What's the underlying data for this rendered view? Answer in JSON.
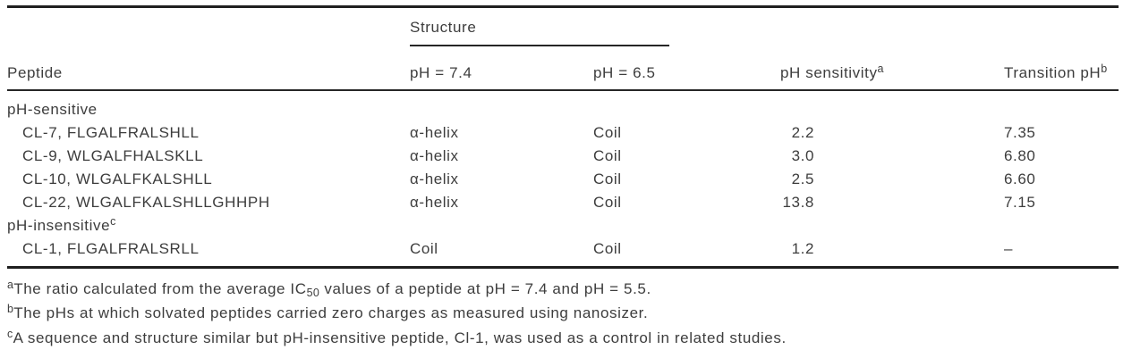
{
  "colors": {
    "text": "#3d3d3d",
    "rule": "#1f1f1f"
  },
  "table": {
    "header": {
      "peptide": "Peptide",
      "structure_group": "Structure",
      "ph74": "pH = 7.4",
      "ph65": "pH = 6.5",
      "sensitivity": "pH sensitivity",
      "sensitivity_marker": "a",
      "transition": "Transition pH",
      "transition_marker": "b"
    },
    "groups": [
      {
        "label": "pH-sensitive",
        "marker": "",
        "rows": [
          {
            "peptide": "CL-7, FLGALFRALSHLL",
            "ph74": "α-helix",
            "ph65": "Coil",
            "sensitivity": "2.2",
            "transition": "7.35"
          },
          {
            "peptide": "CL-9, WLGALFHALSKLL",
            "ph74": "α-helix",
            "ph65": "Coil",
            "sensitivity": "3.0",
            "transition": "6.80"
          },
          {
            "peptide": "CL-10, WLGALFKALSHLL",
            "ph74": "α-helix",
            "ph65": "Coil",
            "sensitivity": "2.5",
            "transition": "6.60"
          },
          {
            "peptide": "CL-22, WLGALFKALSHLLGHHPH",
            "ph74": "α-helix",
            "ph65": "Coil",
            "sensitivity": "13.8",
            "transition": "7.15"
          }
        ]
      },
      {
        "label": "pH-insensitive",
        "marker": "c",
        "rows": [
          {
            "peptide": "CL-1, FLGALFRALSRLL",
            "ph74": "Coil",
            "ph65": "Coil",
            "sensitivity": "1.2",
            "transition": "–"
          }
        ]
      }
    ]
  },
  "footnotes": [
    {
      "marker": "a",
      "pre": "The ratio calculated from the average IC",
      "sub": "50",
      "post": " values of a peptide at pH = 7.4 and pH = 5.5."
    },
    {
      "marker": "b",
      "pre": "The pHs at which solvated peptides carried zero charges as measured using nanosizer.",
      "sub": "",
      "post": ""
    },
    {
      "marker": "c",
      "pre": "A sequence and structure similar but pH-insensitive peptide, Cl-1, was used as a control in related studies.",
      "sub": "",
      "post": ""
    }
  ]
}
